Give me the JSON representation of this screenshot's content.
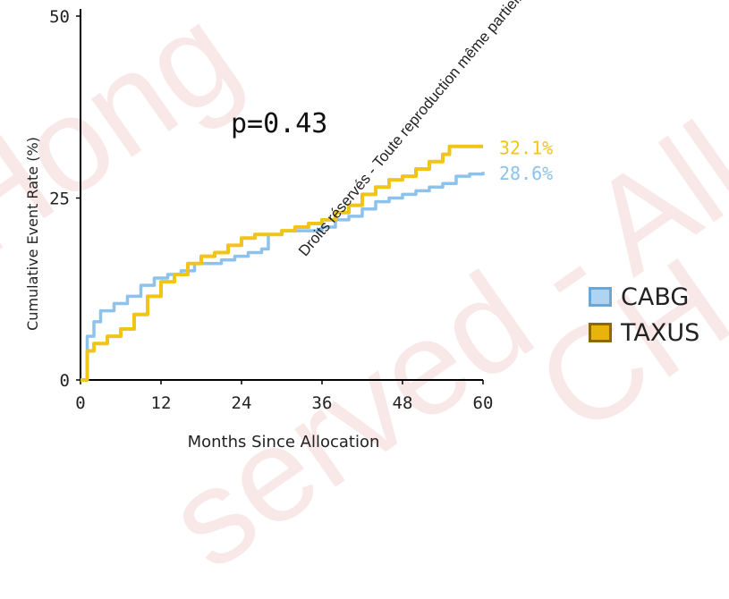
{
  "watermark": {
    "left": "Hong",
    "middle": "served - All",
    "right": "CH"
  },
  "copyright_text": "Droits réservés - Toute reproduction même partielle est interdite.",
  "colors": {
    "cabg": "#8cc2ec",
    "taxus": "#f0c419",
    "cabg_fill": "#aed4f2",
    "taxus_fill": "#e8b40c"
  },
  "chart_data": {
    "type": "line",
    "title": "",
    "xlabel": "Months Since Allocation",
    "ylabel": "Cumulative Event Rate (%)",
    "xlim": [
      0,
      60
    ],
    "ylim": [
      0,
      50
    ],
    "x_ticks": [
      0,
      12,
      24,
      36,
      48,
      60
    ],
    "y_ticks": [
      0,
      25,
      50
    ],
    "annotation": "p=0.43",
    "legend_position": "right",
    "series": [
      {
        "name": "CABG",
        "color": "#8cc2ec",
        "end_label": "28.6%",
        "points": [
          [
            0,
            0
          ],
          [
            1,
            6
          ],
          [
            2,
            8
          ],
          [
            3,
            9.5
          ],
          [
            5,
            10.5
          ],
          [
            7,
            11.5
          ],
          [
            9,
            13
          ],
          [
            11,
            14
          ],
          [
            13,
            14.5
          ],
          [
            15,
            15
          ],
          [
            17,
            16
          ],
          [
            19,
            16
          ],
          [
            21,
            16.5
          ],
          [
            23,
            17
          ],
          [
            25,
            17.5
          ],
          [
            27,
            18
          ],
          [
            28,
            20
          ],
          [
            30,
            20.5
          ],
          [
            32,
            20.5
          ],
          [
            34,
            20.5
          ],
          [
            36,
            21
          ],
          [
            38,
            22
          ],
          [
            40,
            22.5
          ],
          [
            42,
            23.5
          ],
          [
            44,
            24.5
          ],
          [
            46,
            25
          ],
          [
            48,
            25.5
          ],
          [
            50,
            26
          ],
          [
            52,
            26.5
          ],
          [
            54,
            27
          ],
          [
            56,
            28
          ],
          [
            58,
            28.3
          ],
          [
            60,
            28.6
          ]
        ]
      },
      {
        "name": "TAXUS",
        "color": "#f0c419",
        "end_label": "32.1%",
        "points": [
          [
            0,
            0
          ],
          [
            1,
            4
          ],
          [
            2,
            5
          ],
          [
            4,
            6
          ],
          [
            6,
            7
          ],
          [
            8,
            9
          ],
          [
            10,
            11.5
          ],
          [
            12,
            13.5
          ],
          [
            14,
            14.5
          ],
          [
            16,
            16
          ],
          [
            18,
            17
          ],
          [
            20,
            17.5
          ],
          [
            22,
            18.5
          ],
          [
            24,
            19.5
          ],
          [
            26,
            20
          ],
          [
            28,
            20
          ],
          [
            30,
            20.5
          ],
          [
            32,
            21
          ],
          [
            34,
            21.5
          ],
          [
            36,
            22
          ],
          [
            38,
            23
          ],
          [
            40,
            24
          ],
          [
            42,
            25.5
          ],
          [
            44,
            26.5
          ],
          [
            46,
            27.5
          ],
          [
            48,
            28
          ],
          [
            50,
            29
          ],
          [
            52,
            30
          ],
          [
            54,
            31
          ],
          [
            55,
            32.1
          ],
          [
            60,
            32.1
          ]
        ]
      }
    ]
  }
}
